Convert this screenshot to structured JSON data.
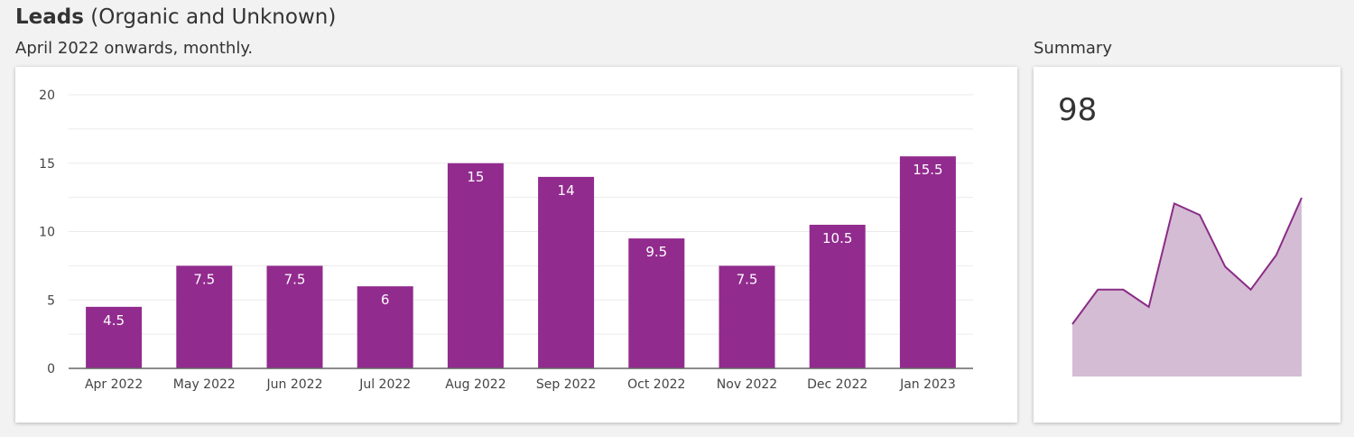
{
  "header": {
    "title_bold": "Leads",
    "title_rest": "(Organic and Unknown)",
    "subtitle": "April 2022 onwards, monthly.",
    "summary_label": "Summary"
  },
  "summary": {
    "value": "98"
  },
  "colors": {
    "bar": "#922b8e",
    "area_fill": "#d4bcd4",
    "area_line": "#8a2c86",
    "grid": "#ebebeb",
    "axis": "#666666"
  },
  "chart_data": {
    "type": "bar",
    "categories": [
      "Apr 2022",
      "May 2022",
      "Jun 2022",
      "Jul 2022",
      "Aug 2022",
      "Sep 2022",
      "Oct 2022",
      "Nov 2022",
      "Dec 2022",
      "Jan 2023"
    ],
    "values": [
      4.5,
      7.5,
      7.5,
      6,
      15,
      14,
      9.5,
      7.5,
      10.5,
      15.5
    ],
    "data_labels": [
      "4.5",
      "7.5",
      "7.5",
      "6",
      "15",
      "14",
      "9.5",
      "7.5",
      "10.5",
      "15.5"
    ],
    "yticks": [
      "0",
      "5",
      "10",
      "15",
      "20"
    ],
    "ylim": [
      0,
      20
    ],
    "grid": true
  }
}
